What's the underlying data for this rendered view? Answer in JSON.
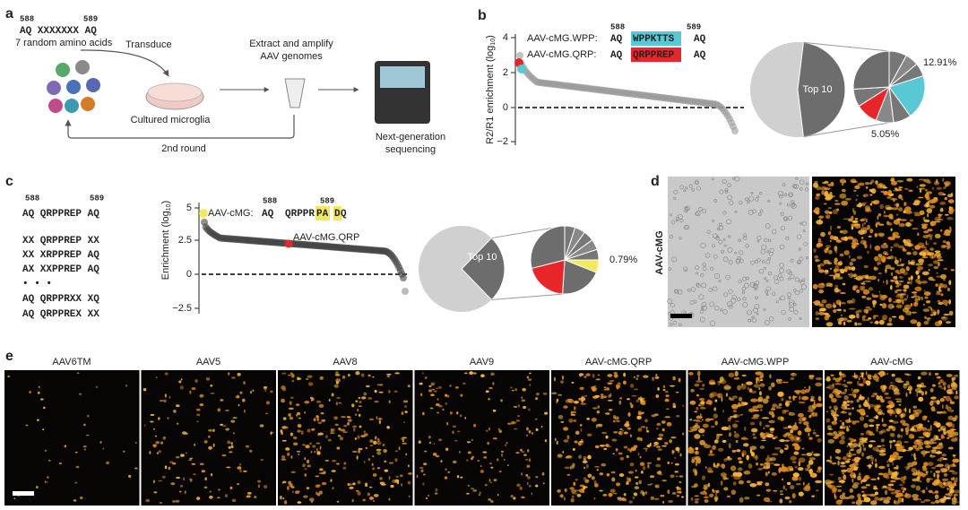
{
  "a": {
    "label": "a",
    "pos_start": "588",
    "pos_end": "589",
    "sequence": "AQ XXXXXXX AQ",
    "caption": "7 random amino acids",
    "transduce": "Transduce",
    "culture": "Cultured microglia",
    "extract": [
      "Extract and amplify",
      "AAV genomes"
    ],
    "sequencing": [
      "Next-generation",
      "sequencing"
    ],
    "loop": "2nd round"
  },
  "b": {
    "label": "b",
    "y_label": [
      "R2/R1 enrichment (log",
      "10",
      ")"
    ],
    "yticks": [
      "4",
      "2",
      "0",
      "−2"
    ],
    "pos_start": "588",
    "pos_end": "589",
    "variants": [
      {
        "name": "AAV-cMG.WPP:",
        "left": "AQ",
        "insert": "WPPKTTS",
        "right": "AQ"
      },
      {
        "name": "AAV-cMG.QRP:",
        "left": "AQ",
        "insert": "QRPPREP",
        "right": "AQ"
      }
    ],
    "pie_label": "Top 10",
    "pcts": [
      "12.91%",
      "5.05%"
    ]
  },
  "c": {
    "label": "c",
    "pos_start": "588",
    "pos_end": "589",
    "library": [
      "AQ QRPPREP AQ",
      "XX QRPPREP XX",
      "XX XRPPREP AQ",
      "AX XXPPREP AQ",
      "• • •",
      "AQ QRPPRXX XQ",
      "AQ QRPPREX XX"
    ],
    "y_label": [
      "Enrichment (log",
      "10",
      ")"
    ],
    "yticks": [
      "5",
      "2.5",
      "0",
      "−2.5"
    ],
    "top_name": "AAV-cMG:",
    "top_seq": [
      "AQ",
      "QRPPR",
      "PA",
      "D",
      "Q"
    ],
    "top_pos": [
      "588",
      "589"
    ],
    "marked": "AAV-cMG.QRP",
    "pie_label": "Top 10",
    "pct": "0.79%"
  },
  "d": {
    "label": "d",
    "row_label": "AAV-cMG"
  },
  "e": {
    "label": "e",
    "titles": [
      "AAV6TM",
      "AAV5",
      "AAV8",
      "AAV9",
      "AAV-cMG.QRP",
      "AAV-cMG.WPP",
      "AAV-cMG"
    ]
  }
}
